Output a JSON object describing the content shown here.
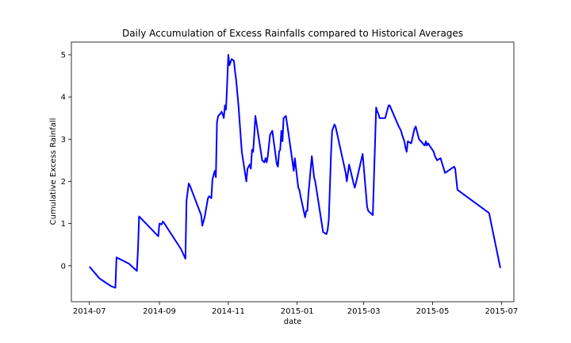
{
  "chart_data": {
    "type": "line",
    "title": "Daily Accumulation of Excess Rainfalls compared to Historical Averages",
    "xlabel": "date",
    "ylabel": "Cumulative Excess Rainfall",
    "xlim": [
      "2014-06-15",
      "2015-07-12"
    ],
    "ylim": [
      -0.85,
      5.3
    ],
    "grid": false,
    "line_color": "#0000ff",
    "x_ticks": [
      {
        "date": "2014-07-01",
        "label": "2014-07"
      },
      {
        "date": "2014-09-01",
        "label": "2014-09"
      },
      {
        "date": "2014-11-01",
        "label": "2014-11"
      },
      {
        "date": "2015-01-01",
        "label": "2015-01"
      },
      {
        "date": "2015-03-01",
        "label": "2015-03"
      },
      {
        "date": "2015-05-01",
        "label": "2015-05"
      },
      {
        "date": "2015-07-01",
        "label": "2015-07"
      }
    ],
    "y_ticks": [
      {
        "value": 0,
        "label": "0"
      },
      {
        "value": 1,
        "label": "1"
      },
      {
        "value": 2,
        "label": "2"
      },
      {
        "value": 3,
        "label": "3"
      },
      {
        "value": 4,
        "label": "4"
      },
      {
        "value": 5,
        "label": "5"
      }
    ],
    "series": [
      {
        "x": [
          "2014-07-01",
          "2014-07-10",
          "2014-07-20",
          "2014-07-24",
          "2014-07-25",
          "2014-08-05",
          "2014-08-12",
          "2014-08-13",
          "2014-08-14",
          "2014-08-31",
          "2014-09-01",
          "2014-09-03",
          "2014-09-04",
          "2014-09-05",
          "2014-09-20",
          "2014-09-24",
          "2014-09-25",
          "2014-09-27",
          "2014-09-28",
          "2014-10-08",
          "2014-10-09",
          "2014-10-11",
          "2014-10-14",
          "2014-10-15",
          "2014-10-17",
          "2014-10-18",
          "2014-10-20",
          "2014-10-21",
          "2014-10-22",
          "2014-10-23",
          "2014-10-25",
          "2014-10-26",
          "2014-10-27",
          "2014-10-28",
          "2014-10-29",
          "2014-10-30",
          "2014-10-31",
          "2014-11-01",
          "2014-11-02",
          "2014-11-04",
          "2014-11-06",
          "2014-11-07",
          "2014-11-08",
          "2014-11-10",
          "2014-11-13",
          "2014-11-17",
          "2014-11-18",
          "2014-11-20",
          "2014-11-21",
          "2014-11-22",
          "2014-11-23",
          "2014-11-24",
          "2014-11-25",
          "2014-11-27",
          "2014-12-01",
          "2014-12-03",
          "2014-12-04",
          "2014-12-05",
          "2014-12-06",
          "2014-12-08",
          "2014-12-10",
          "2014-12-14",
          "2014-12-15",
          "2014-12-16",
          "2014-12-17",
          "2014-12-18",
          "2014-12-19",
          "2014-12-20",
          "2014-12-22",
          "2014-12-24",
          "2014-12-29",
          "2014-12-30",
          "2015-01-02",
          "2015-01-03",
          "2015-01-04",
          "2015-01-08",
          "2015-01-09",
          "2015-01-10",
          "2015-01-11",
          "2015-01-14",
          "2015-01-16",
          "2015-01-17",
          "2015-01-24",
          "2015-01-27",
          "2015-01-28",
          "2015-01-29",
          "2015-01-31",
          "2015-02-01",
          "2015-02-03",
          "2015-02-04",
          "2015-02-13",
          "2015-02-14",
          "2015-02-16",
          "2015-02-20",
          "2015-02-21",
          "2015-02-22",
          "2015-02-28",
          "2015-03-04",
          "2015-03-05",
          "2015-03-09",
          "2015-03-12",
          "2015-03-13",
          "2015-03-14",
          "2015-03-15",
          "2015-03-20",
          "2015-03-23",
          "2015-03-24",
          "2015-04-01",
          "2015-04-03",
          "2015-04-04",
          "2015-04-06",
          "2015-04-07",
          "2015-04-08",
          "2015-04-09",
          "2015-04-12",
          "2015-04-15",
          "2015-04-16",
          "2015-04-17",
          "2015-04-18",
          "2015-04-19",
          "2015-04-24",
          "2015-04-25",
          "2015-04-26",
          "2015-04-27",
          "2015-05-02",
          "2015-05-03",
          "2015-05-05",
          "2015-05-08",
          "2015-05-12",
          "2015-05-20",
          "2015-05-21",
          "2015-05-23",
          "2015-06-20",
          "2015-06-30"
        ],
        "y": [
          -0.02,
          -0.3,
          -0.48,
          -0.52,
          0.2,
          0.05,
          -0.12,
          0.4,
          1.17,
          0.7,
          1.0,
          0.98,
          1.05,
          1.02,
          0.4,
          0.17,
          1.55,
          1.95,
          1.9,
          1.2,
          0.95,
          1.15,
          1.6,
          1.65,
          1.6,
          2.05,
          2.25,
          2.1,
          3.4,
          3.55,
          3.6,
          3.65,
          3.6,
          3.5,
          3.8,
          3.7,
          4.3,
          5.0,
          4.75,
          4.9,
          4.85,
          4.6,
          4.4,
          3.8,
          2.7,
          2.0,
          2.3,
          2.4,
          2.3,
          2.75,
          2.7,
          3.1,
          3.55,
          3.2,
          2.5,
          2.45,
          2.55,
          2.45,
          2.6,
          3.1,
          3.2,
          2.4,
          2.35,
          2.7,
          2.75,
          3.2,
          2.95,
          3.5,
          3.55,
          3.2,
          2.25,
          2.55,
          1.85,
          1.8,
          1.65,
          1.15,
          1.3,
          1.3,
          1.7,
          2.6,
          2.1,
          2.0,
          0.8,
          0.75,
          0.85,
          1.1,
          2.65,
          3.2,
          3.35,
          3.3,
          2.2,
          2.0,
          2.4,
          1.95,
          1.85,
          1.95,
          2.65,
          1.4,
          1.3,
          1.2,
          3.75,
          3.65,
          3.6,
          3.5,
          3.5,
          3.8,
          3.8,
          3.3,
          3.2,
          3.1,
          2.95,
          2.8,
          2.7,
          2.95,
          2.9,
          3.25,
          3.3,
          3.2,
          3.1,
          3.0,
          2.85,
          2.95,
          2.85,
          2.9,
          2.7,
          2.6,
          2.5,
          2.55,
          2.2,
          2.35,
          2.3,
          1.8,
          1.25,
          -0.05
        ]
      }
    ]
  }
}
